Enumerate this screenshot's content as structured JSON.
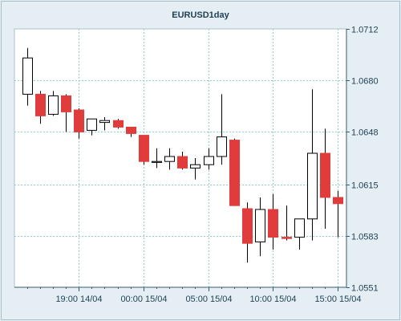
{
  "chart_data": {
    "type": "candlestick",
    "title": "EURUSD1day",
    "ylim": [
      1.0551,
      1.0712
    ],
    "y_ticks": [
      "1.0551",
      "1.0583",
      "1.0615",
      "1.0648",
      "1.0680",
      "1.0712"
    ],
    "x_ticks": [
      "19:00 14/04",
      "00:00 15/04",
      "05:00 15/04",
      "10:00 15/04",
      "15:00 15/04"
    ],
    "grid": true,
    "colors": {
      "up": "#ffffff",
      "down": "#e03c3c",
      "wick": "#000000",
      "grid": "#8ecfcf",
      "plot_bg": "#ffffff",
      "bg": "#e4eef3"
    },
    "candles": [
      {
        "open": 1.06713,
        "high": 1.07001,
        "low": 1.06642,
        "close": 1.06939
      },
      {
        "open": 1.06713,
        "high": 1.06733,
        "low": 1.06529,
        "close": 1.06578
      },
      {
        "open": 1.06588,
        "high": 1.06733,
        "low": 1.06578,
        "close": 1.06703
      },
      {
        "open": 1.06703,
        "high": 1.06713,
        "low": 1.06478,
        "close": 1.06603
      },
      {
        "open": 1.06615,
        "high": 1.06625,
        "low": 1.06437,
        "close": 1.06478
      },
      {
        "open": 1.06488,
        "high": 1.06549,
        "low": 1.06457,
        "close": 1.06559
      },
      {
        "open": 1.06537,
        "high": 1.0657,
        "low": 1.06488,
        "close": 1.06549
      },
      {
        "open": 1.06549,
        "high": 1.06559,
        "low": 1.06498,
        "close": 1.06508
      },
      {
        "open": 1.06508,
        "high": 1.06508,
        "low": 1.06447,
        "close": 1.06468
      },
      {
        "open": 1.06457,
        "high": 1.06457,
        "low": 1.06274,
        "close": 1.06294
      },
      {
        "open": 1.06294,
        "high": 1.06376,
        "low": 1.06253,
        "close": 1.06294
      },
      {
        "open": 1.06294,
        "high": 1.06376,
        "low": 1.06243,
        "close": 1.06325
      },
      {
        "open": 1.06325,
        "high": 1.06355,
        "low": 1.06243,
        "close": 1.06253
      },
      {
        "open": 1.06253,
        "high": 1.06315,
        "low": 1.06182,
        "close": 1.06274
      },
      {
        "open": 1.06274,
        "high": 1.06376,
        "low": 1.06243,
        "close": 1.06325
      },
      {
        "open": 1.06325,
        "high": 1.06713,
        "low": 1.06274,
        "close": 1.06447
      },
      {
        "open": 1.06427,
        "high": 1.06437,
        "low": 1.06031,
        "close": 1.06019
      },
      {
        "open": 1.06,
        "high": 1.06039,
        "low": 1.05664,
        "close": 1.05784
      },
      {
        "open": 1.05793,
        "high": 1.0607,
        "low": 1.05704,
        "close": 1.05995
      },
      {
        "open": 1.05995,
        "high": 1.0609,
        "low": 1.05745,
        "close": 1.05822
      },
      {
        "open": 1.05822,
        "high": 1.06019,
        "low": 1.05802,
        "close": 1.05814
      },
      {
        "open": 1.05822,
        "high": 1.05936,
        "low": 1.05745,
        "close": 1.05936
      },
      {
        "open": 1.05936,
        "high": 1.06744,
        "low": 1.05802,
        "close": 1.06345
      },
      {
        "open": 1.06345,
        "high": 1.06498,
        "low": 1.05875,
        "close": 1.0607
      },
      {
        "open": 1.0607,
        "high": 1.0611,
        "low": 1.05822,
        "close": 1.06031
      }
    ]
  }
}
